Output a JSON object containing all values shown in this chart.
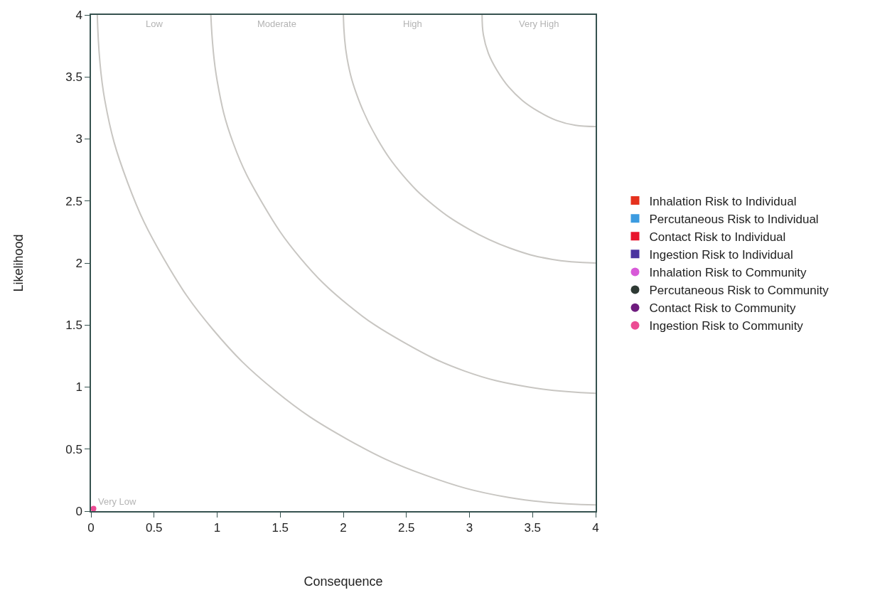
{
  "chart_data": {
    "type": "scatter",
    "xlabel": "Consequence",
    "ylabel": "Likelihood",
    "xlim": [
      0,
      4
    ],
    "ylim": [
      0,
      4
    ],
    "xticks": [
      0,
      0.5,
      1,
      1.5,
      2,
      2.5,
      3,
      3.5,
      4
    ],
    "yticks": [
      0,
      0.5,
      1,
      1.5,
      2,
      2.5,
      3,
      3.5,
      4
    ],
    "grid": false,
    "legend": "right",
    "x": [
      0.02
    ],
    "series": [
      {
        "name": "Inhalation Risk to Individual",
        "color": "#e5321e",
        "marker": "square",
        "values": [
          null
        ]
      },
      {
        "name": "Percutaneous Risk to Individual",
        "color": "#3c9be0",
        "marker": "square",
        "values": [
          null
        ]
      },
      {
        "name": "Contact Risk to Individual",
        "color": "#e8142c",
        "marker": "square",
        "values": [
          null
        ]
      },
      {
        "name": "Ingestion Risk to Individual",
        "color": "#4b34a0",
        "marker": "square",
        "values": [
          null
        ]
      },
      {
        "name": "Inhalation Risk to Community",
        "color": "#d85ad8",
        "marker": "circle",
        "values": [
          null
        ]
      },
      {
        "name": "Percutaneous Risk to Community",
        "color": "#2e3a34",
        "marker": "circle",
        "values": [
          null
        ]
      },
      {
        "name": "Contact Risk to Community",
        "color": "#6e1c7e",
        "marker": "circle",
        "values": [
          null
        ]
      },
      {
        "name": "Ingestion Risk to Community",
        "color": "#ec4c94",
        "marker": "circle",
        "values": [
          0.02
        ]
      },
      {
        "type": "line",
        "color": "#c8c6c2",
        "marker": "none",
        "x": [
          0.05,
          0.11,
          0.29,
          0.58,
          0.97,
          1.46,
          2.03,
          2.65,
          3.31,
          4.0
        ],
        "values": [
          4.0,
          3.31,
          2.65,
          2.03,
          1.46,
          0.97,
          0.58,
          0.29,
          0.11,
          0.05
        ]
      },
      {
        "type": "line",
        "color": "#c8c6c2",
        "marker": "none",
        "x": [
          0.95,
          1.0,
          1.13,
          1.36,
          1.66,
          2.04,
          2.48,
          2.96,
          3.47,
          4.0
        ],
        "values": [
          4.0,
          3.47,
          2.96,
          2.48,
          2.04,
          1.66,
          1.36,
          1.13,
          1.0,
          0.95
        ]
      },
      {
        "type": "line",
        "color": "#c8c6c2",
        "marker": "none",
        "x": [
          2.0,
          2.03,
          2.12,
          2.27,
          2.47,
          2.71,
          3.0,
          3.32,
          3.65,
          4.0
        ],
        "values": [
          4.0,
          3.65,
          3.32,
          3.0,
          2.71,
          2.47,
          2.27,
          2.12,
          2.03,
          2.0
        ]
      },
      {
        "type": "line",
        "color": "#c8c6c2",
        "marker": "none",
        "x": [
          3.1,
          3.11,
          3.15,
          3.22,
          3.31,
          3.42,
          3.55,
          3.69,
          3.84,
          4.0
        ],
        "values": [
          4.0,
          3.84,
          3.69,
          3.55,
          3.42,
          3.31,
          3.22,
          3.15,
          3.11,
          3.1
        ]
      }
    ],
    "annotations": [
      "Low",
      "Moderate",
      "High",
      "Very High",
      "Very Low"
    ]
  }
}
